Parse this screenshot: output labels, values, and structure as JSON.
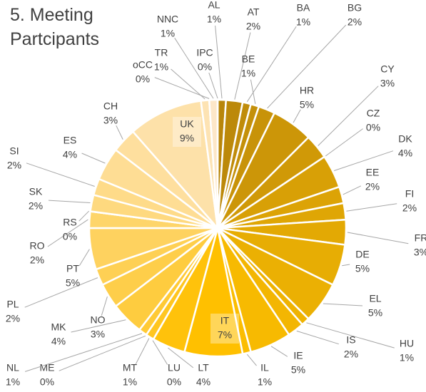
{
  "chart_data": {
    "type": "pie",
    "title": "5. Meeting Partcipants",
    "categories": [
      "AL",
      "AT",
      "BA",
      "BE",
      "BG",
      "HR",
      "CY",
      "CZ",
      "DK",
      "EE",
      "FI",
      "FR",
      "DE",
      "EL",
      "HU",
      "IS",
      "IE",
      "IL",
      "IT",
      "LT",
      "LU",
      "MT",
      "ME",
      "NL",
      "MK",
      "NO",
      "PL",
      "PT",
      "RO",
      "RS",
      "SK",
      "SI",
      "ES",
      "CH",
      "UK",
      "TR",
      "oCC",
      "NNC",
      "IPC"
    ],
    "values": [
      1,
      2,
      1,
      1,
      2,
      5,
      3,
      0,
      4,
      2,
      2,
      3,
      5,
      5,
      1,
      2,
      5,
      1,
      7,
      4,
      0,
      1,
      0,
      1,
      4,
      3,
      2,
      5,
      2,
      0,
      2,
      2,
      4,
      3,
      9,
      1,
      0,
      1,
      0
    ],
    "value_labels": [
      "1%",
      "2%",
      "1%",
      "1%",
      "2%",
      "5%",
      "3%",
      "0%",
      "4%",
      "2%",
      "2%",
      "3%",
      "5%",
      "5%",
      "1%",
      "2%",
      "5%",
      "1%",
      "7%",
      "4%",
      "0%",
      "1%",
      "0%",
      "1%",
      "4%",
      "3%",
      "2%",
      "5%",
      "2%",
      "0%",
      "2%",
      "2%",
      "4%",
      "3%",
      "9%",
      "1%",
      "0%",
      "1%",
      "0%"
    ],
    "palette": [
      "#b8860b",
      "#ffc000",
      "#fde9d3"
    ]
  }
}
